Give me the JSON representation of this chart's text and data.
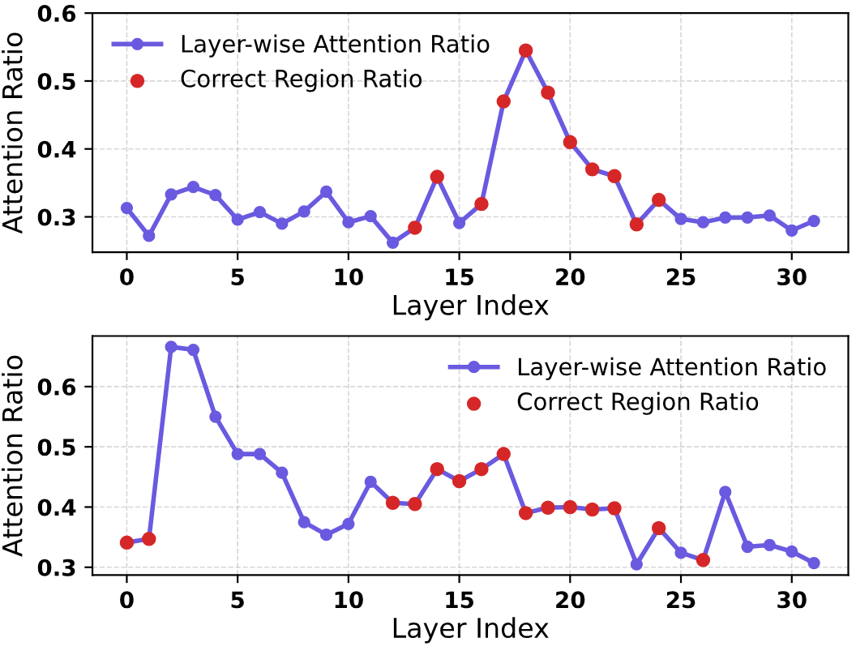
{
  "chart_data": [
    {
      "type": "line",
      "xlabel": "Layer Index",
      "ylabel": "Attention Ratio",
      "xlim": [
        -1.55,
        32.55
      ],
      "xticks": [
        0,
        5,
        10,
        15,
        20,
        25,
        30
      ],
      "ylim": [
        0.248,
        0.6
      ],
      "yticks": [
        0.3,
        0.4,
        0.5,
        0.6
      ],
      "grid": true,
      "legend": "top left",
      "series": [
        {
          "name": "Layer-wise Attention Ratio",
          "marker": "circle",
          "line_style": "solid",
          "color": "#6a5ae0",
          "x": [
            0,
            1,
            2,
            3,
            4,
            5,
            6,
            7,
            8,
            9,
            10,
            11,
            12,
            13,
            14,
            15,
            16,
            17,
            18,
            19,
            20,
            21,
            22,
            23,
            24,
            25,
            26,
            27,
            28,
            29,
            30,
            31
          ],
          "values": [
            0.313,
            0.272,
            0.333,
            0.344,
            0.332,
            0.296,
            0.307,
            0.29,
            0.308,
            0.337,
            0.292,
            0.301,
            0.262,
            0.284,
            0.359,
            0.291,
            0.319,
            0.47,
            0.545,
            0.483,
            0.41,
            0.37,
            0.36,
            0.289,
            0.325,
            0.297,
            0.292,
            0.299,
            0.299,
            0.302,
            0.28,
            0.294
          ]
        },
        {
          "name": "Correct Region Ratio",
          "type": "scatter",
          "marker": "circle",
          "color": "#d62728",
          "x": [
            13,
            14,
            16,
            17,
            18,
            19,
            20,
            21,
            22,
            23,
            24
          ],
          "values": [
            0.284,
            0.359,
            0.319,
            0.47,
            0.545,
            0.483,
            0.41,
            0.37,
            0.36,
            0.289,
            0.325
          ]
        }
      ]
    },
    {
      "type": "line",
      "xlabel": "Layer Index",
      "ylabel": "Attention Ratio",
      "xlim": [
        -1.55,
        32.55
      ],
      "xticks": [
        0,
        5,
        10,
        15,
        20,
        25,
        30
      ],
      "ylim": [
        0.287,
        0.684
      ],
      "yticks": [
        0.3,
        0.4,
        0.5,
        0.6
      ],
      "grid": true,
      "legend": "top right",
      "series": [
        {
          "name": "Layer-wise Attention Ratio",
          "marker": "circle",
          "line_style": "solid",
          "color": "#6a5ae0",
          "x": [
            0,
            1,
            2,
            3,
            4,
            5,
            6,
            7,
            8,
            9,
            10,
            11,
            12,
            13,
            14,
            15,
            16,
            17,
            18,
            19,
            20,
            21,
            22,
            23,
            24,
            25,
            26,
            27,
            28,
            29,
            30,
            31
          ],
          "values": [
            0.341,
            0.347,
            0.666,
            0.661,
            0.55,
            0.488,
            0.488,
            0.457,
            0.375,
            0.354,
            0.372,
            0.442,
            0.407,
            0.405,
            0.463,
            0.443,
            0.463,
            0.488,
            0.39,
            0.399,
            0.4,
            0.396,
            0.398,
            0.305,
            0.365,
            0.324,
            0.312,
            0.425,
            0.334,
            0.337,
            0.326,
            0.307
          ]
        },
        {
          "name": "Correct Region Ratio",
          "type": "scatter",
          "marker": "circle",
          "color": "#d62728",
          "x": [
            0,
            1,
            12,
            13,
            14,
            15,
            16,
            17,
            18,
            19,
            20,
            21,
            22,
            24,
            26
          ],
          "values": [
            0.341,
            0.347,
            0.407,
            0.405,
            0.463,
            0.443,
            0.463,
            0.488,
            0.39,
            0.399,
            0.4,
            0.396,
            0.398,
            0.365,
            0.312
          ]
        }
      ]
    }
  ]
}
